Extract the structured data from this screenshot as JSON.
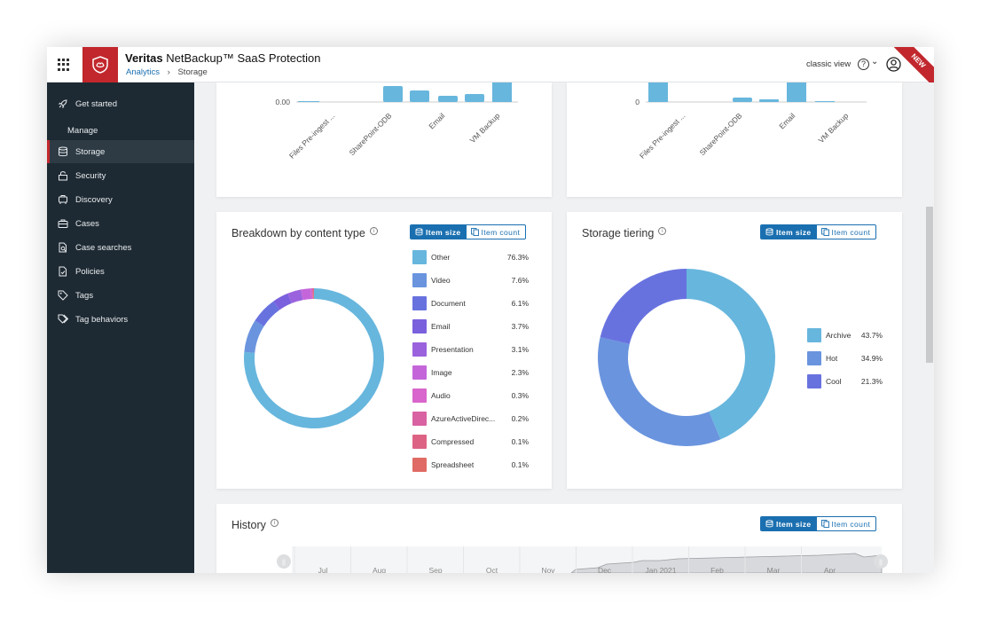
{
  "header": {
    "brand": "Veritas",
    "product": "NetBackup™ SaaS Protection",
    "breadcrumb": [
      "Analytics",
      "Storage"
    ],
    "classic_view": "classic view",
    "help": "?",
    "new_badge": "NEW"
  },
  "sidebar": {
    "section_manage": "Manage",
    "items": [
      {
        "label": "Get started",
        "icon": "rocket-icon"
      },
      {
        "label": "Storage",
        "icon": "database-icon",
        "active": true
      },
      {
        "label": "Security",
        "icon": "lock-icon"
      },
      {
        "label": "Discovery",
        "icon": "discovery-icon"
      },
      {
        "label": "Cases",
        "icon": "briefcase-icon"
      },
      {
        "label": "Case searches",
        "icon": "document-search-icon"
      },
      {
        "label": "Policies",
        "icon": "policy-document-icon"
      },
      {
        "label": "Tags",
        "icon": "tag-icon"
      },
      {
        "label": "Tag behaviors",
        "icon": "tags-icon"
      }
    ]
  },
  "toggle": {
    "item_size": "Item size",
    "item_count": "Item count"
  },
  "top_left_chart": {
    "y_tick": "0.00",
    "categories": [
      "Files Pre-ingest ...",
      "SharePoint-ODB",
      "Email",
      "VM Backup"
    ]
  },
  "top_right_chart": {
    "y_tick": "0",
    "categories": [
      "Files Pre-ingest ...",
      "SharePoint-ODB",
      "Email",
      "VM Backup"
    ]
  },
  "breakdown": {
    "title": "Breakdown by content type",
    "items": [
      {
        "label": "Other",
        "pct": "76.3%",
        "color": "#67b6dd"
      },
      {
        "label": "Video",
        "pct": "7.6%",
        "color": "#6a94de"
      },
      {
        "label": "Document",
        "pct": "6.1%",
        "color": "#6872df"
      },
      {
        "label": "Email",
        "pct": "3.7%",
        "color": "#7a60dd"
      },
      {
        "label": "Presentation",
        "pct": "3.1%",
        "color": "#9b62dd"
      },
      {
        "label": "Image",
        "pct": "2.3%",
        "color": "#c466da"
      },
      {
        "label": "Audio",
        "pct": "0.3%",
        "color": "#d866cc"
      },
      {
        "label": "AzureActiveDirec...",
        "pct": "0.2%",
        "color": "#d962a3"
      },
      {
        "label": "Compressed",
        "pct": "0.1%",
        "color": "#dd6385"
      },
      {
        "label": "Spreadsheet",
        "pct": "0.1%",
        "color": "#e06a65"
      }
    ]
  },
  "tiering": {
    "title": "Storage tiering",
    "items": [
      {
        "label": "Archive",
        "pct": "43.7%",
        "color": "#67b6dd"
      },
      {
        "label": "Hot",
        "pct": "34.9%",
        "color": "#6a94de"
      },
      {
        "label": "Cool",
        "pct": "21.3%",
        "color": "#6872df"
      }
    ]
  },
  "history": {
    "title": "History",
    "months": [
      "Jul",
      "Aug",
      "Sep",
      "Oct",
      "Nov",
      "Dec",
      "Jan 2021",
      "Feb",
      "Mar",
      "Apr"
    ]
  }
}
